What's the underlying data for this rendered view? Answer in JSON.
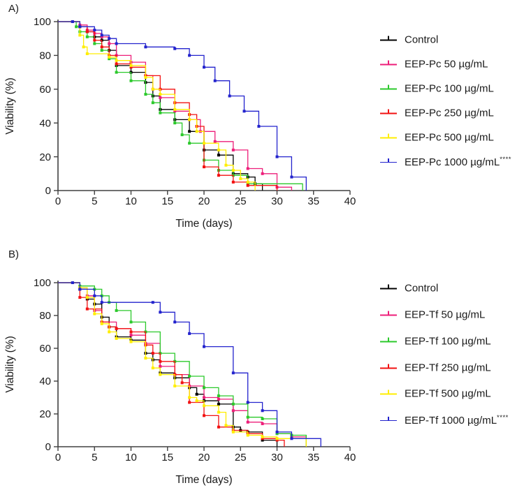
{
  "figure": {
    "colors": {
      "background": "#ffffff",
      "axis": "#404040",
      "text": "#1a1a1a",
      "control": "#000000",
      "dose_50": "#ed1e79",
      "dose_100": "#2bc92b",
      "dose_250": "#f21111",
      "dose_500": "#ffee00",
      "dose_1000": "#2323cd"
    }
  },
  "chart_data": [
    {
      "panel": "A)",
      "type": "line",
      "step": true,
      "title": "",
      "xlabel": "Time (days)",
      "ylabel": "Viability (%)",
      "xlim": [
        0,
        40
      ],
      "ylim": [
        0,
        100
      ],
      "x_ticks": [
        0,
        5,
        10,
        15,
        20,
        25,
        30,
        35,
        40
      ],
      "y_ticks": [
        0,
        20,
        40,
        60,
        80,
        100
      ],
      "grid": false,
      "legend_position": "right",
      "series": [
        {
          "name": "Control",
          "color": "#000000",
          "significance": "",
          "points": [
            [
              0,
              100
            ],
            [
              2,
              100
            ],
            [
              3,
              97
            ],
            [
              4,
              94
            ],
            [
              5,
              91
            ],
            [
              6,
              89
            ],
            [
              7,
              83
            ],
            [
              8,
              74
            ],
            [
              10,
              70
            ],
            [
              12,
              64
            ],
            [
              13,
              56
            ],
            [
              14,
              48
            ],
            [
              16,
              42
            ],
            [
              18,
              35
            ],
            [
              20,
              24
            ],
            [
              22,
              21
            ],
            [
              24,
              10
            ],
            [
              26,
              8
            ],
            [
              27,
              4
            ],
            [
              28,
              0
            ]
          ]
        },
        {
          "name": "EEP-Pc 50 µg/mL",
          "color": "#ed1e79",
          "significance": "",
          "points": [
            [
              0,
              100
            ],
            [
              2,
              100
            ],
            [
              3,
              98
            ],
            [
              4,
              95
            ],
            [
              5,
              93
            ],
            [
              6,
              91
            ],
            [
              7,
              87
            ],
            [
              8,
              80
            ],
            [
              10,
              76
            ],
            [
              12,
              68
            ],
            [
              13,
              60
            ],
            [
              14,
              55
            ],
            [
              16,
              47
            ],
            [
              18,
              42
            ],
            [
              19.5,
              35
            ],
            [
              21.5,
              29
            ],
            [
              24,
              24
            ],
            [
              26,
              13
            ],
            [
              28,
              10
            ],
            [
              30,
              2
            ],
            [
              32,
              0
            ]
          ]
        },
        {
          "name": "EEP-Pc 100 µg/mL",
          "color": "#2bc92b",
          "significance": "",
          "points": [
            [
              0,
              100
            ],
            [
              2,
              100
            ],
            [
              2.5,
              97
            ],
            [
              3,
              94
            ],
            [
              4,
              91
            ],
            [
              5,
              87
            ],
            [
              6,
              83
            ],
            [
              7,
              78
            ],
            [
              8,
              70
            ],
            [
              10,
              65
            ],
            [
              12,
              57
            ],
            [
              13,
              52
            ],
            [
              14,
              46
            ],
            [
              16,
              40
            ],
            [
              17,
              33
            ],
            [
              18,
              28
            ],
            [
              20,
              18
            ],
            [
              22,
              12
            ],
            [
              24,
              9
            ],
            [
              26,
              4
            ],
            [
              33.5,
              0
            ]
          ]
        },
        {
          "name": "EEP-Pc 250 µg/mL",
          "color": "#f21111",
          "significance": "",
          "points": [
            [
              0,
              100
            ],
            [
              2,
              100
            ],
            [
              3,
              97
            ],
            [
              4,
              94
            ],
            [
              5,
              89
            ],
            [
              6,
              85
            ],
            [
              7,
              80
            ],
            [
              8,
              75
            ],
            [
              10,
              73
            ],
            [
              12,
              68
            ],
            [
              14,
              60
            ],
            [
              16,
              52
            ],
            [
              18,
              45
            ],
            [
              19,
              38
            ],
            [
              20,
              14
            ],
            [
              22,
              9
            ],
            [
              24,
              5
            ],
            [
              26,
              3
            ],
            [
              30,
              0
            ]
          ]
        },
        {
          "name": "EEP-Pc 500 µg/mL",
          "color": "#ffee00",
          "significance": "",
          "points": [
            [
              0,
              100
            ],
            [
              2,
              100
            ],
            [
              3,
              92
            ],
            [
              3.5,
              85
            ],
            [
              4,
              81
            ],
            [
              7,
              79
            ],
            [
              8,
              77
            ],
            [
              10,
              74
            ],
            [
              12,
              67
            ],
            [
              13,
              60
            ],
            [
              14,
              57
            ],
            [
              16,
              48
            ],
            [
              18,
              42
            ],
            [
              19,
              35
            ],
            [
              20,
              28
            ],
            [
              22,
              24
            ],
            [
              23,
              15
            ],
            [
              24,
              12
            ],
            [
              25,
              7
            ],
            [
              26,
              5
            ],
            [
              27,
              0
            ]
          ]
        },
        {
          "name": "EEP-Pc 1000 µg/mL",
          "color": "#2323cd",
          "significance": "****",
          "points": [
            [
              0,
              100
            ],
            [
              2,
              100
            ],
            [
              3,
              97
            ],
            [
              5,
              95
            ],
            [
              6,
              92
            ],
            [
              7,
              90
            ],
            [
              8,
              87
            ],
            [
              12,
              85
            ],
            [
              16,
              84
            ],
            [
              18,
              80
            ],
            [
              20,
              73
            ],
            [
              21.5,
              65
            ],
            [
              23.5,
              56
            ],
            [
              25.5,
              47
            ],
            [
              27.5,
              38
            ],
            [
              30,
              20
            ],
            [
              32,
              8
            ],
            [
              34,
              0
            ]
          ]
        }
      ]
    },
    {
      "panel": "B)",
      "type": "line",
      "step": true,
      "title": "",
      "xlabel": "Time (days)",
      "ylabel": "Viability (%)",
      "xlim": [
        0,
        40
      ],
      "ylim": [
        0,
        100
      ],
      "x_ticks": [
        0,
        5,
        10,
        15,
        20,
        25,
        30,
        35,
        40
      ],
      "y_ticks": [
        0,
        20,
        40,
        60,
        80,
        100
      ],
      "grid": false,
      "legend_position": "right",
      "series": [
        {
          "name": "Control",
          "color": "#000000",
          "significance": "",
          "points": [
            [
              0,
              100
            ],
            [
              2,
              100
            ],
            [
              3,
              96
            ],
            [
              4,
              90
            ],
            [
              5,
              87
            ],
            [
              6,
              79
            ],
            [
              7,
              73
            ],
            [
              8,
              67
            ],
            [
              10,
              65
            ],
            [
              12,
              57
            ],
            [
              13,
              53
            ],
            [
              14,
              45
            ],
            [
              16,
              42
            ],
            [
              18,
              36
            ],
            [
              19,
              32
            ],
            [
              20,
              28
            ],
            [
              22,
              26
            ],
            [
              24,
              12
            ],
            [
              25,
              10
            ],
            [
              26,
              9
            ],
            [
              28,
              4
            ],
            [
              30,
              0
            ]
          ]
        },
        {
          "name": "EEP-Tf 50 µg/mL",
          "color": "#ed1e79",
          "significance": "",
          "points": [
            [
              0,
              100
            ],
            [
              2,
              100
            ],
            [
              3,
              97
            ],
            [
              4,
              92
            ],
            [
              5,
              83
            ],
            [
              6,
              76
            ],
            [
              8,
              72
            ],
            [
              10,
              68
            ],
            [
              12,
              63
            ],
            [
              14,
              49
            ],
            [
              16,
              44
            ],
            [
              18,
              37
            ],
            [
              20,
              30
            ],
            [
              22,
              29
            ],
            [
              24,
              22
            ],
            [
              26,
              15
            ],
            [
              28,
              14
            ],
            [
              30,
              8
            ],
            [
              32,
              6
            ],
            [
              34,
              0
            ]
          ]
        },
        {
          "name": "EEP-Tf 100 µg/mL",
          "color": "#2bc92b",
          "significance": "",
          "points": [
            [
              0,
              100
            ],
            [
              2,
              100
            ],
            [
              3,
              98
            ],
            [
              5,
              96
            ],
            [
              6,
              92
            ],
            [
              7,
              88
            ],
            [
              8,
              83
            ],
            [
              10,
              76
            ],
            [
              12,
              70
            ],
            [
              14,
              57
            ],
            [
              16,
              52
            ],
            [
              18,
              43
            ],
            [
              20,
              36
            ],
            [
              22,
              31
            ],
            [
              24,
              26
            ],
            [
              26,
              18
            ],
            [
              28,
              17
            ],
            [
              30,
              8
            ],
            [
              32,
              7
            ],
            [
              34,
              0
            ]
          ]
        },
        {
          "name": "EEP-Tf 250 µg/mL",
          "color": "#f21111",
          "significance": "",
          "points": [
            [
              0,
              100
            ],
            [
              2,
              100
            ],
            [
              3,
              91
            ],
            [
              4,
              84
            ],
            [
              6,
              76
            ],
            [
              7,
              73
            ],
            [
              8,
              72
            ],
            [
              10,
              70
            ],
            [
              12,
              62
            ],
            [
              13,
              57
            ],
            [
              14,
              52
            ],
            [
              16,
              44
            ],
            [
              17,
              39
            ],
            [
              18,
              27
            ],
            [
              20,
              19
            ],
            [
              22,
              12
            ],
            [
              24,
              10
            ],
            [
              26,
              8
            ],
            [
              28,
              5
            ],
            [
              30,
              4
            ],
            [
              31,
              0
            ]
          ]
        },
        {
          "name": "EEP-Tf 500 µg/mL",
          "color": "#ffee00",
          "significance": "",
          "points": [
            [
              0,
              100
            ],
            [
              2,
              100
            ],
            [
              3,
              97
            ],
            [
              4,
              91
            ],
            [
              5,
              81
            ],
            [
              6,
              75
            ],
            [
              7,
              70
            ],
            [
              8,
              66
            ],
            [
              10,
              64
            ],
            [
              12,
              54
            ],
            [
              13,
              48
            ],
            [
              14,
              44
            ],
            [
              16,
              37
            ],
            [
              18,
              30
            ],
            [
              19,
              28
            ],
            [
              20,
              25
            ],
            [
              22,
              21
            ],
            [
              23,
              13
            ],
            [
              24,
              9
            ],
            [
              26,
              7
            ],
            [
              28,
              6
            ],
            [
              30,
              5
            ],
            [
              34,
              0
            ]
          ]
        },
        {
          "name": "EEP-Tf 1000 µg/mL",
          "color": "#2323cd",
          "significance": "****",
          "points": [
            [
              0,
              100
            ],
            [
              2,
              100
            ],
            [
              3,
              96
            ],
            [
              5,
              92
            ],
            [
              6,
              88
            ],
            [
              13,
              88
            ],
            [
              14,
              82
            ],
            [
              16,
              76
            ],
            [
              18,
              69
            ],
            [
              20,
              61
            ],
            [
              24,
              45
            ],
            [
              26,
              27
            ],
            [
              28,
              22
            ],
            [
              30,
              9
            ],
            [
              32,
              5
            ],
            [
              36,
              0
            ]
          ]
        }
      ]
    }
  ]
}
